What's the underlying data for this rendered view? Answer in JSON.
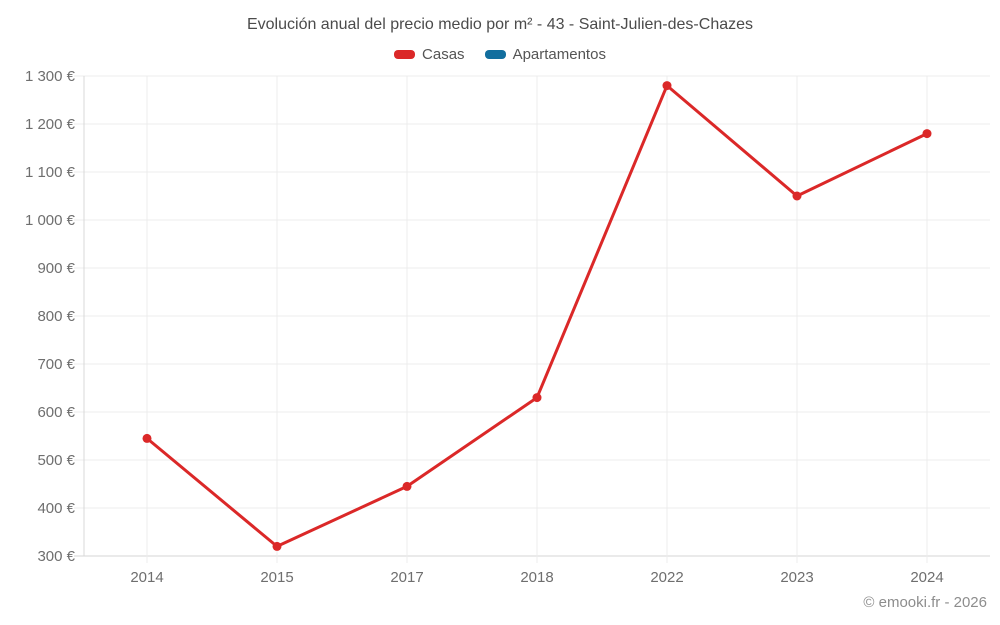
{
  "title": "Evolución anual del precio medio por m² - 43 - Saint-Julien-des-Chazes",
  "legend": [
    {
      "label": "Casas",
      "color": "#db2828"
    },
    {
      "label": "Apartamentos",
      "color": "#126e9e"
    }
  ],
  "footer": "© emooki.fr - 2026",
  "chart_data": {
    "type": "line",
    "title": "Evolución anual del precio medio por m² - 43 - Saint-Julien-des-Chazes",
    "categories": [
      "2014",
      "2015",
      "2017",
      "2018",
      "2022",
      "2023",
      "2024"
    ],
    "series": [
      {
        "name": "Casas",
        "color": "#db2828",
        "values": [
          545,
          320,
          445,
          630,
          1280,
          1050,
          1180
        ]
      },
      {
        "name": "Apartamentos",
        "color": "#126e9e",
        "values": []
      }
    ],
    "xlabel": "",
    "ylabel": "",
    "ylim": [
      300,
      1300
    ],
    "y_ticks": [
      300,
      400,
      500,
      600,
      700,
      800,
      900,
      1000,
      1100,
      1200,
      1300
    ],
    "y_tick_labels": [
      "300 €",
      "400 €",
      "500 €",
      "600 €",
      "700 €",
      "800 €",
      "900 €",
      "1 000 €",
      "1 100 €",
      "1 200 €",
      "1 300 €"
    ],
    "grid": true,
    "legend_position": "top",
    "marker": "circle",
    "grid_color": "#ececec",
    "axis_line_color": "#d9d9d9",
    "tick_label_color": "#6e6e6e"
  }
}
